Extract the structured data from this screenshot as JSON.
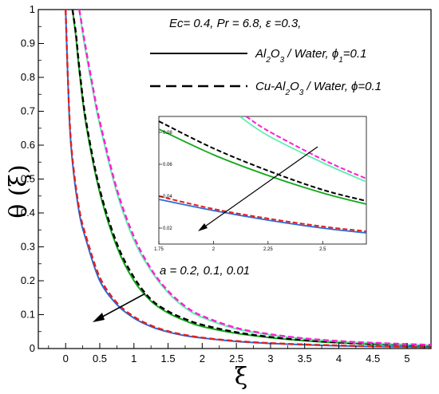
{
  "chart_data": {
    "type": "line",
    "title": "",
    "xlabel": "ξ",
    "ylabel": "θ (ξ)",
    "xlim": [
      -0.4,
      5.35
    ],
    "ylim": [
      0,
      1
    ],
    "x_ticks": [
      "0",
      "0.5",
      "1",
      "1.5",
      "2",
      "2.5",
      "3",
      "3.5",
      "4",
      "4.5",
      "5"
    ],
    "y_ticks": [
      "0",
      "0.1",
      "0.2",
      "0.3",
      "0.4",
      "0.5",
      "0.6",
      "0.7",
      "0.8",
      "0.9",
      "1"
    ],
    "annotation_params": "Ec= 0.4, Pr = 6.8, ε =0.3,",
    "legend": [
      {
        "label": "Al2O3 / Water, ϕ1=0.1",
        "style": "solid"
      },
      {
        "label": "Cu-Al2O3 / Water, ϕ=0.1",
        "style": "dashed"
      }
    ],
    "arrow_label": "a = 0.2, 0.1, 0.01",
    "series": [
      {
        "fluid": "Al2O3 / Water",
        "a": 0.2,
        "color": "#2a6ad8",
        "style": "solid",
        "x": [
          0.0,
          0.05,
          0.1,
          0.2,
          0.3,
          0.5,
          0.75,
          1.0,
          1.25,
          1.5,
          1.75,
          2.0,
          2.5,
          3.0,
          3.5,
          4.0,
          4.5,
          5.0,
          5.35
        ],
        "y": [
          1.0,
          0.7,
          0.55,
          0.4,
          0.32,
          0.2,
          0.13,
          0.09,
          0.065,
          0.049,
          0.038,
          0.031,
          0.021,
          0.015,
          0.011,
          0.008,
          0.006,
          0.005,
          0.004
        ]
      },
      {
        "fluid": "Cu-Al2O3 / Water",
        "a": 0.2,
        "color": "#e0201e",
        "style": "dashed",
        "x": [
          0.0,
          0.05,
          0.1,
          0.2,
          0.3,
          0.5,
          0.75,
          1.0,
          1.25,
          1.5,
          1.75,
          2.0,
          2.5,
          3.0,
          3.5,
          4.0,
          4.5,
          5.0,
          5.35
        ],
        "y": [
          1.0,
          0.71,
          0.56,
          0.41,
          0.33,
          0.21,
          0.135,
          0.094,
          0.068,
          0.051,
          0.04,
          0.032,
          0.022,
          0.016,
          0.012,
          0.009,
          0.007,
          0.005,
          0.004
        ]
      },
      {
        "fluid": "Al2O3 / Water",
        "a": 0.1,
        "color": "#12a81a",
        "style": "solid",
        "x": [
          0.1,
          0.15,
          0.2,
          0.3,
          0.5,
          0.75,
          1.0,
          1.25,
          1.5,
          1.75,
          2.0,
          2.5,
          3.0,
          3.5,
          4.0,
          4.5,
          5.0,
          5.35
        ],
        "y": [
          1.0,
          0.92,
          0.82,
          0.66,
          0.46,
          0.3,
          0.2,
          0.14,
          0.105,
          0.082,
          0.065,
          0.045,
          0.032,
          0.023,
          0.017,
          0.013,
          0.01,
          0.008
        ]
      },
      {
        "fluid": "Cu-Al2O3 / Water",
        "a": 0.1,
        "color": "#000000",
        "style": "dashed",
        "x": [
          0.1,
          0.15,
          0.2,
          0.3,
          0.5,
          0.75,
          1.0,
          1.25,
          1.5,
          1.75,
          2.0,
          2.5,
          3.0,
          3.5,
          4.0,
          4.5,
          5.0,
          5.35
        ],
        "y": [
          1.0,
          0.93,
          0.83,
          0.67,
          0.47,
          0.31,
          0.21,
          0.145,
          0.11,
          0.087,
          0.07,
          0.048,
          0.034,
          0.025,
          0.018,
          0.014,
          0.011,
          0.009
        ]
      },
      {
        "fluid": "Al2O3 / Water",
        "a": 0.01,
        "color": "#5ef0b0",
        "style": "solid",
        "x": [
          0.2,
          0.25,
          0.3,
          0.4,
          0.5,
          0.75,
          1.0,
          1.25,
          1.5,
          1.75,
          2.0,
          2.5,
          3.0,
          3.5,
          4.0,
          4.5,
          5.0,
          5.35
        ],
        "y": [
          1.0,
          0.93,
          0.87,
          0.76,
          0.66,
          0.46,
          0.32,
          0.23,
          0.165,
          0.12,
          0.092,
          0.058,
          0.04,
          0.029,
          0.021,
          0.016,
          0.012,
          0.01
        ]
      },
      {
        "fluid": "Cu-Al2O3 / Water",
        "a": 0.01,
        "color": "#ff1fd0",
        "style": "dashed",
        "x": [
          0.2,
          0.25,
          0.3,
          0.4,
          0.5,
          0.75,
          1.0,
          1.25,
          1.5,
          1.75,
          2.0,
          2.5,
          3.0,
          3.5,
          4.0,
          4.5,
          5.0,
          5.35
        ],
        "y": [
          1.0,
          0.94,
          0.88,
          0.77,
          0.67,
          0.47,
          0.33,
          0.235,
          0.17,
          0.125,
          0.096,
          0.061,
          0.042,
          0.03,
          0.022,
          0.017,
          0.013,
          0.011
        ]
      }
    ],
    "inset": {
      "xlim": [
        1.75,
        2.7
      ],
      "ylim": [
        0.01,
        0.09
      ],
      "x_ticks": [
        "1.75",
        "2",
        "2.25",
        "2.5"
      ],
      "y_ticks": [
        "0.02",
        "0.04",
        "0.06",
        "0.08"
      ],
      "series": [
        {
          "color": "#2a6ad8",
          "style": "solid",
          "x": [
            1.75,
            2.0,
            2.25,
            2.5,
            2.7
          ],
          "y": [
            0.038,
            0.031,
            0.025,
            0.02,
            0.017
          ]
        },
        {
          "color": "#e0201e",
          "style": "dashed",
          "x": [
            1.75,
            2.0,
            2.25,
            2.5,
            2.7
          ],
          "y": [
            0.04,
            0.032,
            0.026,
            0.021,
            0.018
          ]
        },
        {
          "color": "#12a81a",
          "style": "solid",
          "x": [
            1.75,
            2.0,
            2.25,
            2.5,
            2.7
          ],
          "y": [
            0.082,
            0.066,
            0.053,
            0.042,
            0.035
          ]
        },
        {
          "color": "#000000",
          "style": "dashed",
          "x": [
            1.75,
            2.0,
            2.25,
            2.5,
            2.7
          ],
          "y": [
            0.087,
            0.07,
            0.056,
            0.044,
            0.037
          ]
        },
        {
          "color": "#5ef0b0",
          "style": "solid",
          "x": [
            2.12,
            2.25,
            2.5,
            2.7
          ],
          "y": [
            0.09,
            0.078,
            0.061,
            0.049
          ]
        },
        {
          "color": "#ff1fd0",
          "style": "dashed",
          "x": [
            2.15,
            2.25,
            2.5,
            2.7
          ],
          "y": [
            0.09,
            0.081,
            0.063,
            0.051
          ]
        }
      ]
    }
  }
}
